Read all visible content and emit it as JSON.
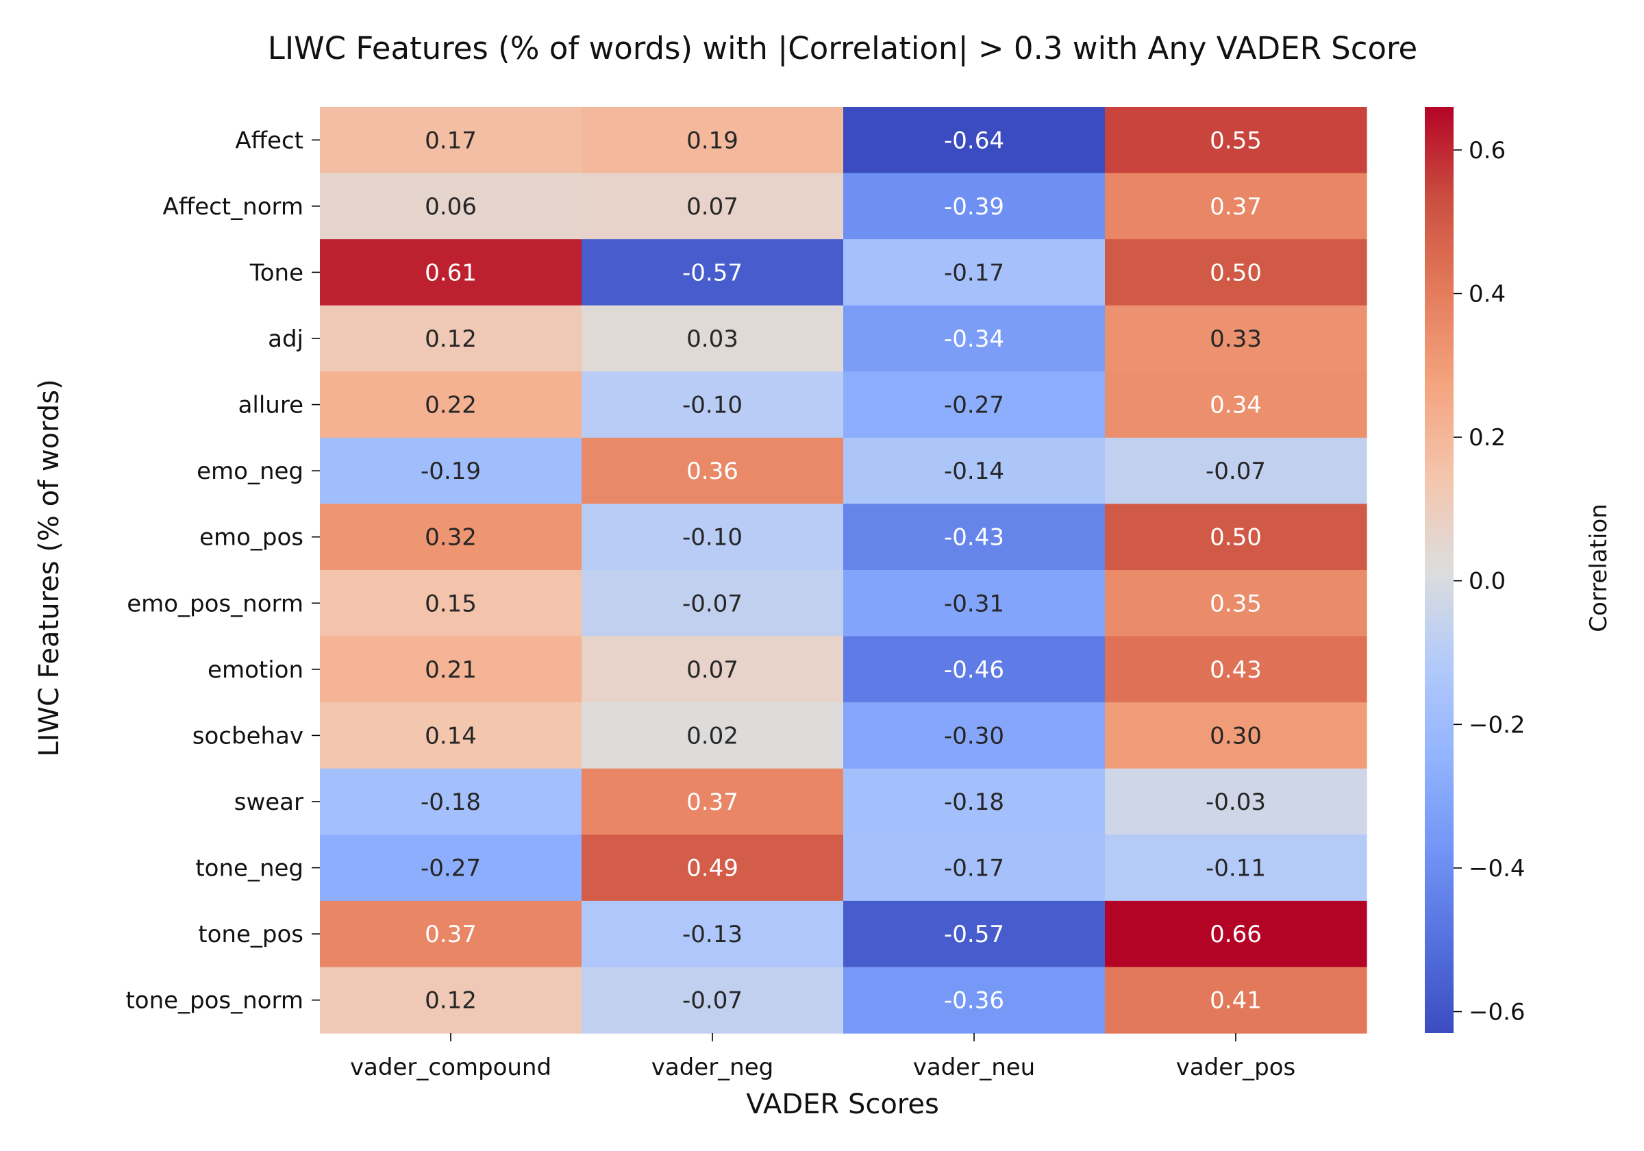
{
  "chart_data": {
    "type": "heatmap",
    "title": "LIWC Features (% of words) with |Correlation| > 0.3 with Any VADER Score",
    "xlabel": "VADER Scores",
    "ylabel": "LIWC Features (% of words)",
    "colorbar_label": "Correlation",
    "colormap": "coolwarm",
    "color_range": [
      -0.63,
      0.66
    ],
    "colorbar_ticks": [
      -0.6,
      -0.4,
      -0.2,
      0.0,
      0.2,
      0.4,
      0.6
    ],
    "colorbar_tick_labels": [
      "−0.6",
      "−0.4",
      "−0.2",
      "0.0",
      "0.2",
      "0.4",
      "0.6"
    ],
    "columns": [
      "vader_compound",
      "vader_neg",
      "vader_neu",
      "vader_pos"
    ],
    "rows": [
      "Affect",
      "Affect_norm",
      "Tone",
      "adj",
      "allure",
      "emo_neg",
      "emo_pos",
      "emo_pos_norm",
      "emotion",
      "socbehav",
      "swear",
      "tone_neg",
      "tone_pos",
      "tone_pos_norm"
    ],
    "values": [
      [
        0.17,
        0.19,
        -0.64,
        0.55
      ],
      [
        0.06,
        0.07,
        -0.39,
        0.37
      ],
      [
        0.61,
        -0.57,
        -0.17,
        0.5
      ],
      [
        0.12,
        0.03,
        -0.34,
        0.33
      ],
      [
        0.22,
        -0.1,
        -0.27,
        0.34
      ],
      [
        -0.19,
        0.36,
        -0.14,
        -0.07
      ],
      [
        0.32,
        -0.1,
        -0.43,
        0.5
      ],
      [
        0.15,
        -0.07,
        -0.31,
        0.35
      ],
      [
        0.21,
        0.07,
        -0.46,
        0.43
      ],
      [
        0.14,
        0.02,
        -0.3,
        0.3
      ],
      [
        -0.18,
        0.37,
        -0.18,
        -0.03
      ],
      [
        -0.27,
        0.49,
        -0.17,
        -0.11
      ],
      [
        0.37,
        -0.13,
        -0.57,
        0.66
      ],
      [
        0.12,
        -0.07,
        -0.36,
        0.41
      ]
    ],
    "cell_labels": [
      [
        "0.17",
        "0.19",
        "-0.64",
        "0.55"
      ],
      [
        "0.06",
        "0.07",
        "-0.39",
        "0.37"
      ],
      [
        "0.61",
        "-0.57",
        "-0.17",
        "0.50"
      ],
      [
        "0.12",
        "0.03",
        "-0.34",
        "0.33"
      ],
      [
        "0.22",
        "-0.10",
        "-0.27",
        "0.34"
      ],
      [
        "-0.19",
        "0.36",
        "-0.14",
        "-0.07"
      ],
      [
        "0.32",
        "-0.10",
        "-0.43",
        "0.50"
      ],
      [
        "0.15",
        "-0.07",
        "-0.31",
        "0.35"
      ],
      [
        "0.21",
        "0.07",
        "-0.46",
        "0.43"
      ],
      [
        "0.14",
        "0.02",
        "-0.30",
        "0.30"
      ],
      [
        "-0.18",
        "0.37",
        "-0.18",
        "-0.03"
      ],
      [
        "-0.27",
        "0.49",
        "-0.17",
        "-0.11"
      ],
      [
        "0.37",
        "-0.13",
        "-0.57",
        "0.66"
      ],
      [
        "0.12",
        "-0.07",
        "-0.36",
        "0.41"
      ]
    ]
  }
}
